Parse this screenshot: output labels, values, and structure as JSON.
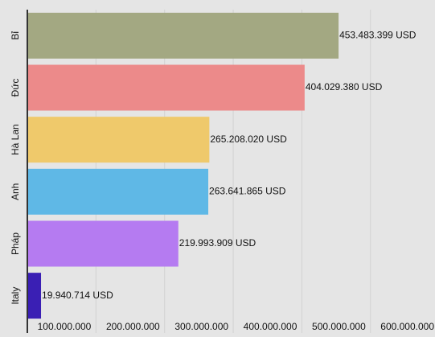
{
  "chart_data": {
    "type": "hbar",
    "categories": [
      "Bỉ",
      "Đức",
      "Hà Lan",
      "Anh",
      "Pháp",
      "Italy"
    ],
    "values": [
      453483399,
      404029380,
      265208020,
      263641865,
      219993909,
      19940714
    ],
    "value_labels": [
      "453.483.399 USD",
      "404.029.380 USD",
      "265.208.020 USD",
      "263.641.865 USD",
      "219.993.909 USD",
      "19.940.714 USD"
    ],
    "colors": [
      "#a3a882",
      "#ec8a8a",
      "#efc96b",
      "#5fb8e6",
      "#b57bf1",
      "#3a1fb4"
    ],
    "xlim": [
      0,
      594000000
    ],
    "xticks": [
      {
        "value": 100000000,
        "label": "100.000.000"
      },
      {
        "value": 200000000,
        "label": "200.000.000"
      },
      {
        "value": 300000000,
        "label": "300.000.000"
      },
      {
        "value": 400000000,
        "label": "400.000.000"
      },
      {
        "value": 500000000,
        "label": "500.000.000"
      },
      {
        "value": 600000000,
        "label": "600.000.000"
      }
    ],
    "grid": true
  }
}
